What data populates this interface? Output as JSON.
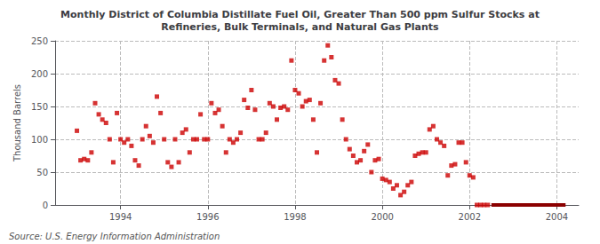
{
  "chart_data": {
    "type": "scatter",
    "title": "Monthly District of Columbia Distillate Fuel Oil, Greater Than 500 ppm Sulfur Stocks at\nRefineries, Bulk Terminals, and Natural Gas Plants",
    "ylabel": "Thousand Barrels",
    "annotations": [
      "Source: U.S. Energy Information Administration"
    ],
    "xlim": [
      1992.5,
      2004.5
    ],
    "xticks": [
      1994,
      1996,
      1998,
      2000,
      2002,
      2004
    ],
    "ylim": [
      0,
      250
    ],
    "yticks": [
      0,
      50,
      100,
      150,
      200,
      250
    ],
    "grid": true,
    "series": [
      {
        "type": "scatter",
        "color": "#cc0000",
        "marker": "square",
        "x": [
          1993.0,
          1993.083,
          1993.167,
          1993.25,
          1993.333,
          1993.417,
          1993.5,
          1993.583,
          1993.667,
          1993.75,
          1993.833,
          1993.917,
          1994.0,
          1994.083,
          1994.167,
          1994.25,
          1994.333,
          1994.417,
          1994.5,
          1994.583,
          1994.667,
          1994.75,
          1994.833,
          1994.917,
          1995.0,
          1995.083,
          1995.167,
          1995.25,
          1995.333,
          1995.417,
          1995.5,
          1995.583,
          1995.667,
          1995.75,
          1995.833,
          1995.917,
          1996.0,
          1996.083,
          1996.167,
          1996.25,
          1996.333,
          1996.417,
          1996.5,
          1996.583,
          1996.667,
          1996.75,
          1996.833,
          1996.917,
          1997.0,
          1997.083,
          1997.167,
          1997.25,
          1997.333,
          1997.417,
          1997.5,
          1997.583,
          1997.667,
          1997.75,
          1997.833,
          1997.917,
          1998.0,
          1998.083,
          1998.167,
          1998.25,
          1998.333,
          1998.417,
          1998.5,
          1998.583,
          1998.667,
          1998.75,
          1998.833,
          1998.917,
          1999.0,
          1999.083,
          1999.167,
          1999.25,
          1999.333,
          1999.417,
          1999.5,
          1999.583,
          1999.667,
          1999.75,
          1999.833,
          1999.917,
          2000.0,
          2000.083,
          2000.167,
          2000.25,
          2000.333,
          2000.417,
          2000.5,
          2000.583,
          2000.667,
          2000.75,
          2000.833,
          2000.917,
          2001.0,
          2001.083,
          2001.167,
          2001.25,
          2001.333,
          2001.417,
          2001.5,
          2001.583,
          2001.667,
          2001.75,
          2001.833,
          2001.917,
          2002.0,
          2002.083,
          2002.167,
          2002.25,
          2002.333,
          2002.417
        ],
        "values": [
          113,
          68,
          70,
          68,
          80,
          155,
          138,
          130,
          125,
          100,
          65,
          140,
          100,
          95,
          100,
          90,
          68,
          60,
          100,
          120,
          105,
          95,
          165,
          140,
          100,
          65,
          58,
          100,
          65,
          110,
          115,
          80,
          100,
          100,
          138,
          100,
          100,
          155,
          140,
          145,
          120,
          80,
          100,
          95,
          100,
          110,
          160,
          148,
          175,
          145,
          100,
          100,
          110,
          155,
          150,
          130,
          148,
          150,
          145,
          220,
          175,
          170,
          150,
          158,
          160,
          130,
          80,
          155,
          220,
          243,
          225,
          190,
          185,
          130,
          100,
          85,
          75,
          65,
          68,
          82,
          92,
          50,
          68,
          70,
          40,
          38,
          35,
          25,
          30,
          15,
          20,
          30,
          35,
          75,
          78,
          80,
          80,
          115,
          120,
          100,
          95,
          90,
          45,
          60,
          62,
          95,
          95,
          65,
          45,
          42,
          0,
          0,
          0,
          0
        ]
      },
      {
        "type": "line",
        "color": "#8b0000",
        "x": [
          2002.5,
          2004.2
        ],
        "values": [
          0,
          0
        ]
      }
    ]
  }
}
